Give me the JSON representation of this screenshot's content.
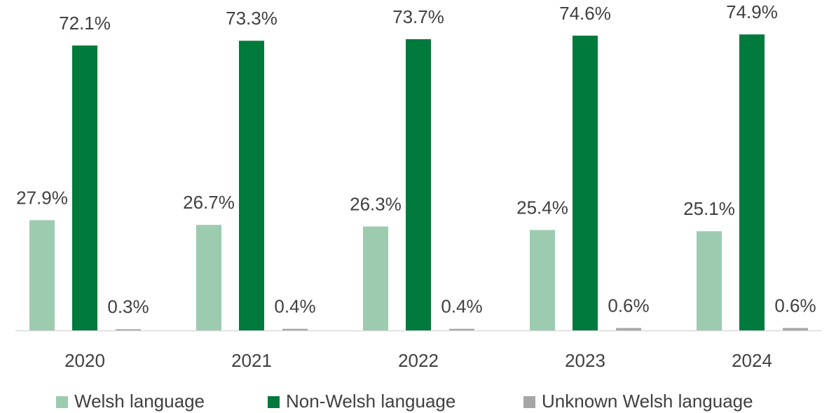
{
  "chart_data": {
    "type": "bar",
    "categories": [
      "2020",
      "2021",
      "2022",
      "2023",
      "2024"
    ],
    "series": [
      {
        "name": "Welsh language",
        "color": "#9dcbb0",
        "values": [
          27.9,
          26.7,
          26.3,
          25.4,
          25.1
        ],
        "value_labels": [
          "27.9%",
          "26.7%",
          "26.3%",
          "25.4%",
          "25.1%"
        ]
      },
      {
        "name": "Non-Welsh language",
        "color": "#007a3d",
        "values": [
          72.1,
          73.3,
          73.7,
          74.6,
          74.9
        ],
        "value_labels": [
          "72.1%",
          "73.3%",
          "73.7%",
          "74.6%",
          "74.9%"
        ]
      },
      {
        "name": "Unknown Welsh language",
        "color": "#a6a6a6",
        "values": [
          0.3,
          0.4,
          0.4,
          0.6,
          0.6
        ],
        "value_labels": [
          "0.3%",
          "0.4%",
          "0.4%",
          "0.6%",
          "0.6%"
        ]
      }
    ],
    "legend": "bottom"
  }
}
